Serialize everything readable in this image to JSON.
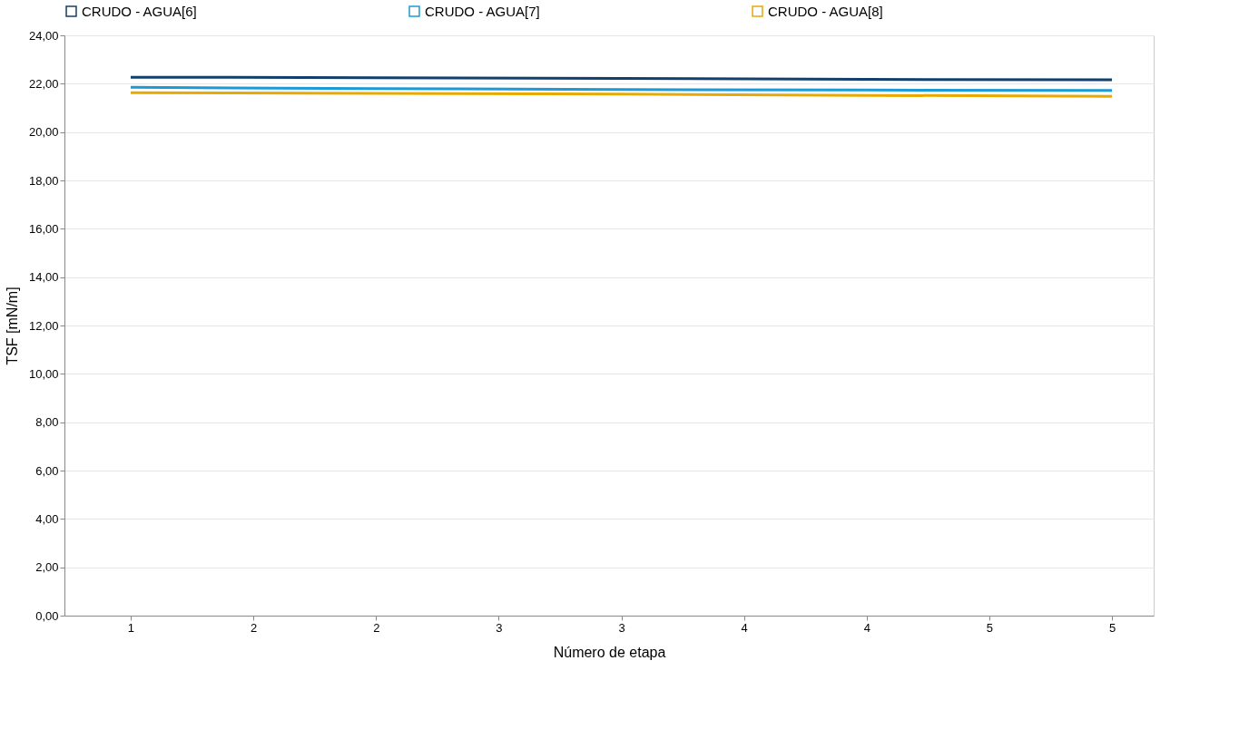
{
  "chart_data": {
    "type": "line",
    "xlabel": "Número de etapa",
    "ylabel": "TSF [mN/m]",
    "x": [
      1,
      2,
      3,
      4,
      5
    ],
    "series": [
      {
        "name": "CRUDO - AGUA[6]",
        "color": "#123f6b",
        "values": [
          22.27,
          22.25,
          22.22,
          22.18,
          22.16
        ]
      },
      {
        "name": "CRUDO - AGUA[7]",
        "color": "#1b9ad8",
        "values": [
          21.85,
          21.8,
          21.76,
          21.74,
          21.72
        ]
      },
      {
        "name": "CRUDO - AGUA[8]",
        "color": "#e8a900",
        "values": [
          21.63,
          21.6,
          21.57,
          21.52,
          21.48
        ]
      }
    ],
    "xlim": [
      0.73,
      5.17
    ],
    "xticks": [
      {
        "value": 1,
        "label": "1"
      },
      {
        "value": 1.5,
        "label": "2"
      },
      {
        "value": 2,
        "label": "2"
      },
      {
        "value": 2.5,
        "label": "3"
      },
      {
        "value": 3,
        "label": "3"
      },
      {
        "value": 3.5,
        "label": "4"
      },
      {
        "value": 4,
        "label": "4"
      },
      {
        "value": 4.5,
        "label": "5"
      },
      {
        "value": 5,
        "label": "5"
      }
    ],
    "ylim": [
      0,
      24
    ],
    "yticks": [
      {
        "value": 0,
        "label": "0,00"
      },
      {
        "value": 2,
        "label": "2,00"
      },
      {
        "value": 4,
        "label": "4,00"
      },
      {
        "value": 6,
        "label": "6,00"
      },
      {
        "value": 8,
        "label": "8,00"
      },
      {
        "value": 10,
        "label": "10,00"
      },
      {
        "value": 12,
        "label": "12,00"
      },
      {
        "value": 14,
        "label": "14,00"
      },
      {
        "value": 16,
        "label": "16,00"
      },
      {
        "value": 18,
        "label": "18,00"
      },
      {
        "value": 20,
        "label": "20,00"
      },
      {
        "value": 22,
        "label": "22,00"
      },
      {
        "value": 24,
        "label": "24,00"
      }
    ],
    "grid": "y",
    "legend": "top",
    "marker": "none",
    "line_style": "solid"
  }
}
